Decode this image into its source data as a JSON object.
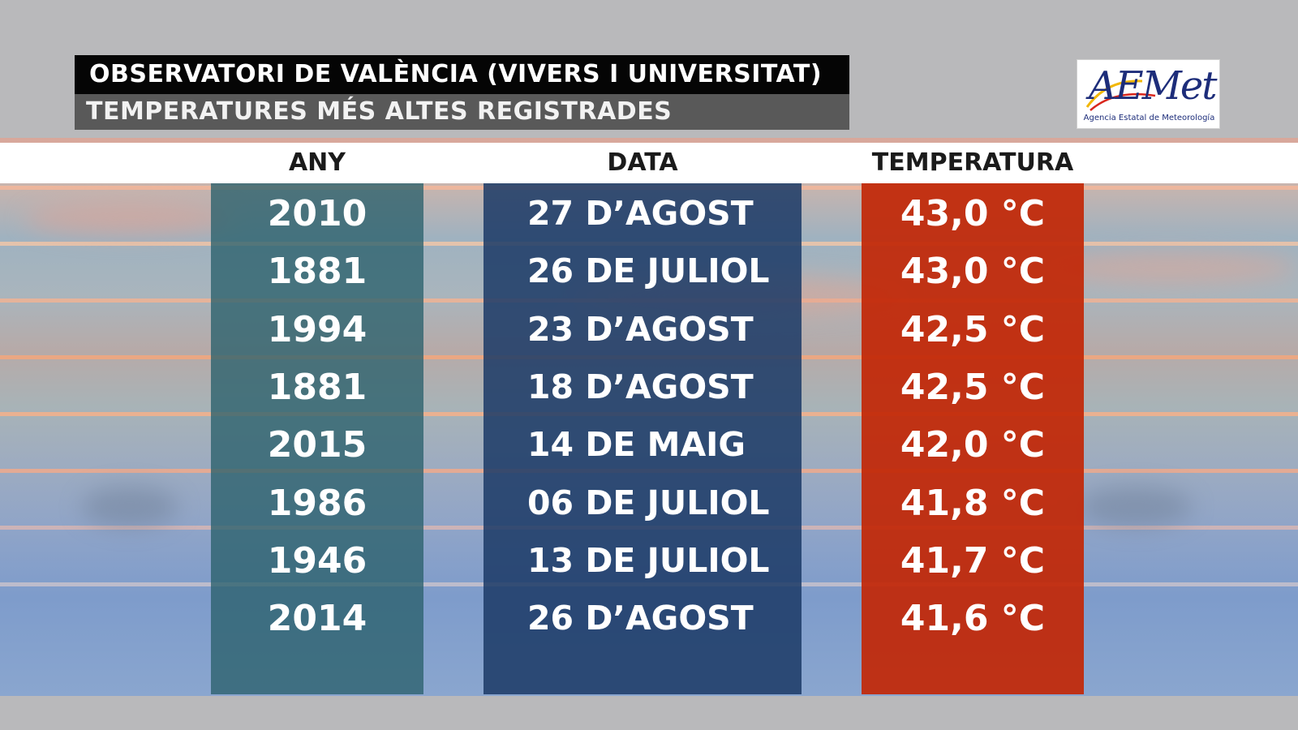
{
  "title": {
    "line1": "OBSERVATORI DE VALÈNCIA (VIVERS I UNIVERSITAT)",
    "line2": "TEMPERATURES MÉS ALTES REGISTRADES"
  },
  "logo": {
    "name": "AEMet",
    "subtitle": "Agencia Estatal de Meteorología"
  },
  "colors": {
    "year_column": "#2a606c",
    "date_column": "#1c3a66",
    "temperature_column": "#c22808",
    "title_bar": "#050505",
    "subtitle_bar": "#595959"
  },
  "table": {
    "headers": {
      "year": "ANY",
      "date": "DATA",
      "temperature": "TEMPERATURA"
    },
    "rows": [
      {
        "year": "2010",
        "date": "27 D’AGOST",
        "temperature": "43,0 °C"
      },
      {
        "year": "1881",
        "date": "26 DE JULIOL",
        "temperature": "43,0 °C"
      },
      {
        "year": "1994",
        "date": "23 D’AGOST",
        "temperature": "42,5 °C"
      },
      {
        "year": "1881",
        "date": "18 D’AGOST",
        "temperature": "42,5 °C"
      },
      {
        "year": "2015",
        "date": "14 DE MAIG",
        "temperature": "42,0 °C"
      },
      {
        "year": "1986",
        "date": "06 DE JULIOL",
        "temperature": "41,8 °C"
      },
      {
        "year": "1946",
        "date": "13 DE JULIOL",
        "temperature": "41,7 °C"
      },
      {
        "year": "2014",
        "date": "26 D’AGOST",
        "temperature": "41,6 °C"
      }
    ]
  }
}
